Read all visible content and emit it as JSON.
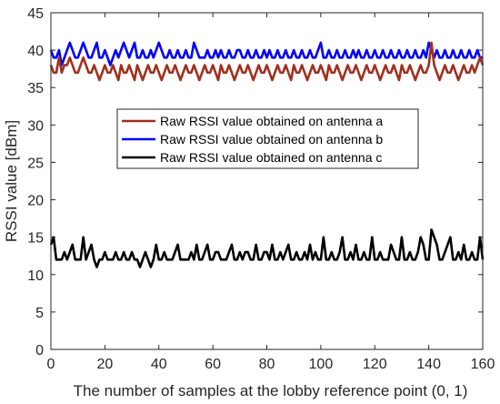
{
  "chart_data": {
    "type": "line",
    "title": "",
    "xlabel": "The number of samples at the lobby reference point (0, 1)",
    "ylabel": "RSSI value [dBm]",
    "xlim": [
      0,
      160
    ],
    "ylim": [
      0,
      45
    ],
    "xticks": [
      "0",
      "20",
      "40",
      "60",
      "80",
      "100",
      "120",
      "140",
      "160"
    ],
    "yticks": [
      "0",
      "5",
      "10",
      "15",
      "20",
      "25",
      "30",
      "35",
      "40",
      "45"
    ],
    "grid": false,
    "legend_position": "center",
    "series": [
      {
        "name": "Raw RSSI value obtained on antenna b",
        "color": "#0000ff",
        "values": [
          40,
          39,
          39,
          40,
          38,
          39,
          40,
          41,
          40,
          39,
          39,
          40,
          41,
          40,
          39,
          39,
          40,
          41,
          39,
          39,
          40,
          39,
          38,
          39,
          40,
          39,
          40,
          41,
          40,
          39,
          40,
          41,
          39,
          39,
          40,
          39,
          39,
          40,
          39,
          40,
          41,
          40,
          39,
          39,
          40,
          39,
          39,
          40,
          39,
          39,
          40,
          39,
          39,
          41,
          40,
          39,
          39,
          39,
          40,
          39,
          39,
          40,
          39,
          40,
          39,
          39,
          40,
          39,
          39,
          40,
          40,
          39,
          39,
          40,
          39,
          39,
          40,
          39,
          39,
          40,
          39,
          40,
          39,
          39,
          40,
          39,
          39,
          40,
          39,
          39,
          40,
          39,
          39,
          40,
          39,
          39,
          40,
          39,
          39,
          40,
          41,
          39,
          39,
          40,
          39,
          39,
          40,
          39,
          39,
          40,
          39,
          39,
          40,
          39,
          40,
          39,
          39,
          40,
          39,
          39,
          40,
          39,
          39,
          40,
          39,
          39,
          40,
          39,
          39,
          40,
          39,
          39,
          40,
          39,
          39,
          40,
          39,
          39,
          40,
          39,
          41,
          40,
          39,
          40,
          39,
          39,
          40,
          39,
          39,
          40,
          39,
          39,
          40,
          39,
          39,
          40,
          39,
          39,
          40,
          39,
          39
        ]
      },
      {
        "name": "Raw RSSI value obtained on antenna a",
        "color": "#a0301e",
        "values": [
          38,
          37,
          37,
          39,
          37,
          38,
          38,
          39,
          38,
          37,
          37,
          38,
          39,
          38,
          37,
          37,
          38,
          37,
          36,
          37,
          38,
          37,
          37,
          38,
          37,
          36,
          38,
          37,
          37,
          38,
          37,
          36,
          38,
          37,
          36,
          37,
          38,
          37,
          37,
          38,
          37,
          36,
          37,
          38,
          37,
          37,
          38,
          37,
          36,
          37,
          38,
          37,
          37,
          38,
          37,
          36,
          37,
          38,
          37,
          37,
          38,
          37,
          36,
          38,
          37,
          37,
          38,
          37,
          36,
          37,
          38,
          37,
          37,
          38,
          37,
          36,
          37,
          38,
          37,
          37,
          38,
          37,
          36,
          37,
          38,
          37,
          37,
          38,
          37,
          36,
          38,
          37,
          37,
          38,
          37,
          36,
          37,
          38,
          37,
          37,
          38,
          37,
          36,
          38,
          37,
          37,
          38,
          37,
          36,
          37,
          38,
          37,
          37,
          38,
          37,
          36,
          37,
          38,
          37,
          37,
          38,
          37,
          36,
          37,
          38,
          37,
          37,
          38,
          37,
          36,
          38,
          37,
          37,
          38,
          37,
          36,
          37,
          38,
          37,
          37,
          38,
          41,
          38,
          37,
          36,
          37,
          38,
          37,
          37,
          38,
          37,
          36,
          37,
          38,
          37,
          37,
          38,
          37,
          38,
          39,
          38
        ]
      },
      {
        "name": "Raw RSSI value obtained on antenna c",
        "color": "#000000",
        "values": [
          14,
          15,
          12,
          12,
          12,
          13,
          12,
          13,
          14,
          12,
          12,
          12,
          15,
          12,
          13,
          14,
          12,
          11,
          12,
          12,
          13,
          12,
          12,
          12,
          13,
          12,
          12,
          13,
          12,
          12,
          13,
          12,
          12,
          11,
          12,
          13,
          12,
          11,
          12,
          14,
          12,
          12,
          13,
          12,
          12,
          12,
          13,
          14,
          12,
          12,
          12,
          12,
          13,
          12,
          14,
          12,
          12,
          13,
          14,
          12,
          12,
          13,
          13,
          12,
          12,
          12,
          13,
          14,
          12,
          12,
          13,
          12,
          13,
          13,
          12,
          12,
          14,
          12,
          12,
          13,
          13,
          12,
          14,
          12,
          12,
          13,
          12,
          13,
          14,
          12,
          12,
          13,
          12,
          12,
          13,
          12,
          14,
          12,
          13,
          12,
          12,
          15,
          12,
          12,
          13,
          12,
          12,
          13,
          15,
          12,
          12,
          13,
          12,
          14,
          12,
          12,
          13,
          12,
          12,
          15,
          12,
          12,
          13,
          12,
          12,
          12,
          14,
          13,
          12,
          12,
          15,
          12,
          12,
          13,
          12,
          12,
          13,
          15,
          14,
          12,
          12,
          16,
          15,
          14,
          12,
          12,
          13,
          14,
          15,
          12,
          12,
          13,
          12,
          14,
          12,
          12,
          13,
          12,
          12,
          15,
          12
        ]
      }
    ],
    "legend_order": [
      1,
      0,
      2
    ]
  }
}
